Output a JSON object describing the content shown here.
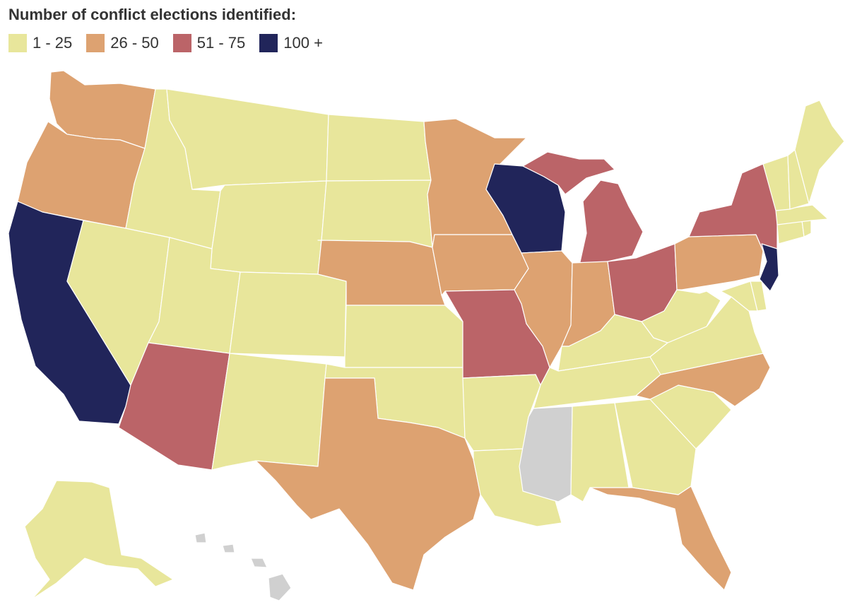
{
  "legend": {
    "title": "Number of conflict elections identified:",
    "items": [
      {
        "label": "1 - 25",
        "color": "#e8e69b"
      },
      {
        "label": "26 - 50",
        "color": "#dda271"
      },
      {
        "label": "51 - 75",
        "color": "#bb6468"
      },
      {
        "label": "100 +",
        "color": "#21255a"
      }
    ],
    "no_data_color": "#d0d0d0"
  },
  "states": {
    "WA": "26 - 50",
    "OR": "26 - 50",
    "CA": "100 +",
    "NV": "1 - 25",
    "ID": "1 - 25",
    "MT": "1 - 25",
    "WY": "1 - 25",
    "UT": "1 - 25",
    "AZ": "51 - 75",
    "NM": "1 - 25",
    "CO": "1 - 25",
    "ND": "1 - 25",
    "SD": "1 - 25",
    "NE": "26 - 50",
    "KS": "1 - 25",
    "OK": "1 - 25",
    "TX": "26 - 50",
    "MN": "26 - 50",
    "IA": "26 - 50",
    "MO": "51 - 75",
    "AR": "1 - 25",
    "LA": "1 - 25",
    "WI": "100 +",
    "IL": "26 - 50",
    "MI": "51 - 75",
    "IN": "26 - 50",
    "OH": "51 - 75",
    "KY": "1 - 25",
    "TN": "1 - 25",
    "MS": "no data",
    "AL": "1 - 25",
    "GA": "1 - 25",
    "FL": "26 - 50",
    "SC": "1 - 25",
    "NC": "26 - 50",
    "VA": "1 - 25",
    "WV": "1 - 25",
    "PA": "26 - 50",
    "NY": "51 - 75",
    "NJ": "100 +",
    "DE": "1 - 25",
    "MD": "1 - 25",
    "CT": "1 - 25",
    "RI": "1 - 25",
    "MA": "1 - 25",
    "VT": "1 - 25",
    "NH": "1 - 25",
    "ME": "1 - 25",
    "AK": "1 - 25",
    "HI": "no data"
  }
}
